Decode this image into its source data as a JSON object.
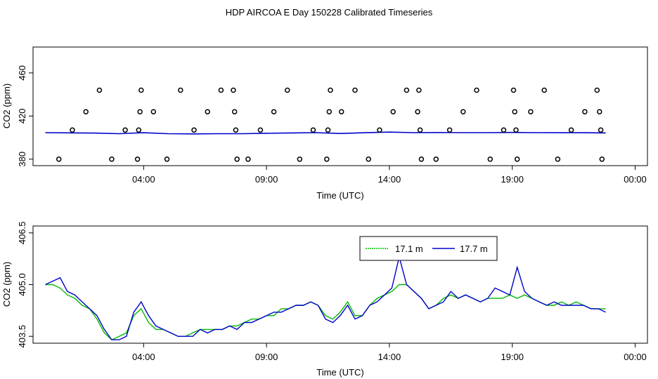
{
  "title": "HDP AIRCOA E  Day 150228  Calibrated Timeseries",
  "colors": {
    "axis": "#000000",
    "blue": "#0000cc",
    "green": "#00bb00"
  },
  "chart_data": [
    {
      "type": "scatter",
      "xlabel": "Time (UTC)",
      "ylabel": "CO2 (ppm)",
      "xticks": [
        "04:00",
        "09:00",
        "14:00",
        "19:00",
        "00:00"
      ],
      "yticks": [
        "380",
        "420",
        "460"
      ],
      "xlim_hours": [
        -0.5,
        24.5
      ],
      "ylim": [
        374,
        484
      ],
      "calibration_points": {
        "x_hours": [
          0.55,
          1.1,
          1.65,
          2.2,
          2.7,
          3.25,
          3.75,
          3.8,
          3.85,
          3.9,
          4.4,
          4.95,
          5.5,
          6.05,
          6.6,
          7.15,
          7.65,
          7.7,
          7.75,
          7.8,
          8.25,
          8.75,
          9.3,
          9.85,
          10.35,
          10.9,
          11.45,
          11.5,
          11.55,
          11.6,
          12.05,
          12.6,
          13.15,
          13.6,
          14.15,
          14.7,
          15.15,
          15.2,
          15.25,
          15.3,
          15.9,
          16.45,
          17.0,
          17.55,
          18.1,
          18.65,
          19.05,
          19.1,
          19.15,
          19.2,
          19.75,
          20.3,
          20.85,
          21.4,
          21.95,
          22.45,
          22.55,
          22.6,
          22.65
        ],
        "y_ppm": [
          380,
          407,
          424,
          444,
          380,
          407,
          380,
          407,
          424,
          444,
          424,
          380,
          444,
          407,
          424,
          444,
          444,
          424,
          407,
          380,
          380,
          407,
          424,
          444,
          380,
          407,
          380,
          407,
          424,
          444,
          424,
          444,
          380,
          407,
          424,
          444,
          424,
          444,
          407,
          380,
          380,
          407,
          424,
          444,
          380,
          407,
          444,
          424,
          407,
          380,
          424,
          444,
          380,
          407,
          424,
          444,
          424,
          407,
          380
        ]
      },
      "series": [
        {
          "name": "17.7 m",
          "x_hours": [
            0,
            1,
            2,
            3,
            4,
            5,
            6,
            7,
            8,
            9,
            10,
            11,
            12,
            13,
            14,
            15,
            16,
            17,
            18,
            19,
            20,
            21,
            22,
            22.8
          ],
          "values": [
            404.6,
            404.4,
            404.2,
            403.6,
            404.5,
            403.6,
            403.4,
            403.6,
            403.6,
            404.0,
            404.3,
            404.6,
            403.8,
            404.5,
            405.1,
            404.6,
            404.7,
            404.6,
            404.6,
            404.8,
            404.6,
            404.5,
            404.5,
            404.3
          ]
        }
      ]
    },
    {
      "type": "line",
      "xlabel": "Time (UTC)",
      "ylabel": "CO2 (ppm)",
      "xticks": [
        "04:00",
        "09:00",
        "14:00",
        "19:00",
        "00:00"
      ],
      "yticks": [
        "403.5",
        "405.0",
        "406.5"
      ],
      "xlim_hours": [
        -0.5,
        24.5
      ],
      "ylim": [
        403.3,
        406.7
      ],
      "legend_position": "top-right",
      "series": [
        {
          "name": "17.1 m",
          "x_hours": [
            0,
            0.3,
            0.6,
            0.9,
            1.2,
            1.5,
            1.8,
            2.1,
            2.4,
            2.7,
            3.0,
            3.3,
            3.6,
            3.9,
            4.2,
            4.5,
            4.8,
            5.1,
            5.4,
            5.7,
            6.0,
            6.3,
            6.6,
            6.9,
            7.2,
            7.5,
            7.8,
            8.1,
            8.4,
            8.7,
            9.0,
            9.3,
            9.6,
            9.9,
            10.2,
            10.5,
            10.8,
            11.1,
            11.4,
            11.7,
            12.0,
            12.3,
            12.6,
            12.9,
            13.2,
            13.5,
            13.8,
            14.1,
            14.4,
            14.7,
            15.0,
            15.3,
            15.6,
            15.9,
            16.2,
            16.5,
            16.8,
            17.1,
            17.4,
            17.7,
            18.0,
            18.3,
            18.6,
            18.9,
            19.2,
            19.5,
            19.8,
            20.1,
            20.4,
            20.7,
            21.0,
            21.3,
            21.6,
            21.9,
            22.2,
            22.5,
            22.8
          ],
          "values": [
            405.0,
            405.0,
            404.9,
            404.7,
            404.6,
            404.4,
            404.3,
            404.0,
            403.6,
            403.4,
            403.5,
            403.6,
            404.1,
            404.3,
            403.9,
            403.7,
            403.7,
            403.6,
            403.5,
            403.5,
            403.6,
            403.7,
            403.7,
            403.7,
            403.7,
            403.8,
            403.8,
            403.9,
            404.0,
            404.0,
            404.1,
            404.1,
            404.3,
            404.3,
            404.4,
            404.4,
            404.5,
            404.4,
            404.1,
            404.0,
            404.2,
            404.5,
            404.1,
            404.1,
            404.4,
            404.6,
            404.7,
            404.8,
            405.0,
            405.0,
            404.8,
            404.6,
            404.3,
            404.4,
            404.6,
            404.7,
            404.6,
            404.7,
            404.6,
            404.5,
            404.6,
            404.6,
            404.6,
            404.7,
            404.6,
            404.7,
            404.6,
            404.5,
            404.4,
            404.4,
            404.5,
            404.4,
            404.5,
            404.4,
            404.3,
            404.3,
            404.3
          ]
        },
        {
          "name": "17.7 m",
          "x_hours": [
            0,
            0.3,
            0.6,
            0.9,
            1.2,
            1.5,
            1.8,
            2.1,
            2.4,
            2.7,
            3.0,
            3.3,
            3.6,
            3.9,
            4.2,
            4.5,
            4.8,
            5.1,
            5.4,
            5.7,
            6.0,
            6.3,
            6.6,
            6.9,
            7.2,
            7.5,
            7.8,
            8.1,
            8.4,
            8.7,
            9.0,
            9.3,
            9.6,
            9.9,
            10.2,
            10.5,
            10.8,
            11.1,
            11.4,
            11.7,
            12.0,
            12.3,
            12.6,
            12.9,
            13.2,
            13.5,
            13.8,
            14.1,
            14.4,
            14.7,
            15.0,
            15.3,
            15.6,
            15.9,
            16.2,
            16.5,
            16.8,
            17.1,
            17.4,
            17.7,
            18.0,
            18.3,
            18.6,
            18.9,
            19.2,
            19.5,
            19.8,
            20.1,
            20.4,
            20.7,
            21.0,
            21.3,
            21.6,
            21.9,
            22.2,
            22.5,
            22.8
          ],
          "values": [
            405.0,
            405.1,
            405.2,
            404.8,
            404.7,
            404.5,
            404.3,
            404.1,
            403.7,
            403.4,
            403.4,
            403.5,
            404.2,
            404.5,
            404.1,
            403.8,
            403.7,
            403.6,
            403.5,
            403.5,
            403.5,
            403.7,
            403.6,
            403.7,
            403.7,
            403.8,
            403.7,
            403.9,
            403.9,
            404.0,
            404.1,
            404.2,
            404.2,
            404.3,
            404.4,
            404.4,
            404.5,
            404.4,
            404.0,
            403.9,
            404.1,
            404.4,
            404.0,
            404.1,
            404.4,
            404.5,
            404.7,
            404.9,
            405.8,
            405.0,
            404.8,
            404.6,
            404.3,
            404.4,
            404.5,
            404.8,
            404.6,
            404.7,
            404.6,
            404.5,
            404.6,
            404.9,
            404.8,
            404.7,
            405.5,
            404.8,
            404.6,
            404.5,
            404.4,
            404.5,
            404.4,
            404.4,
            404.4,
            404.4,
            404.3,
            404.3,
            404.2
          ]
        }
      ]
    }
  ]
}
